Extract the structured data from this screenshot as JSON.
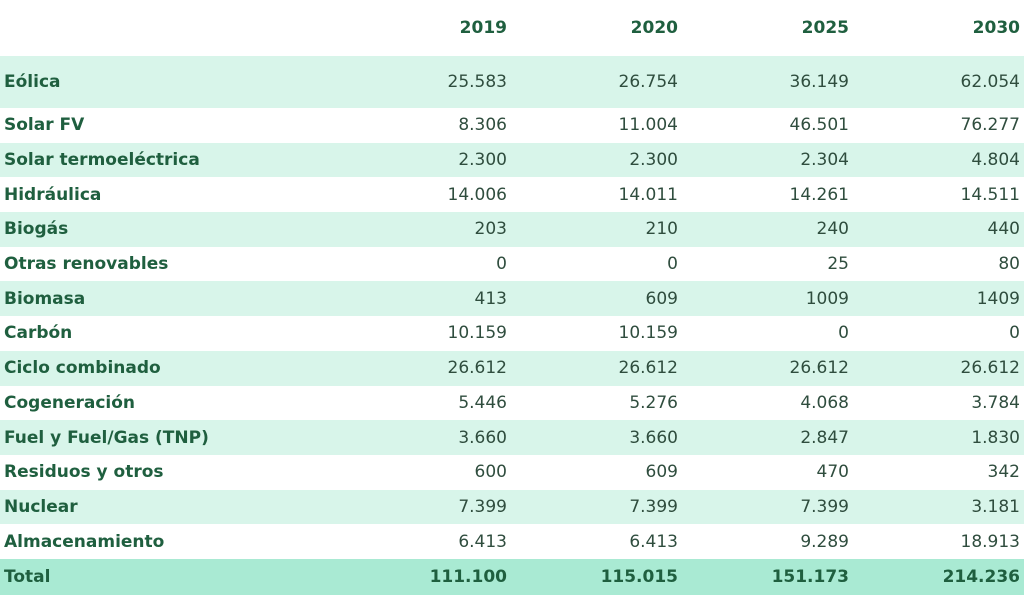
{
  "table": {
    "headers": [
      "",
      "2019",
      "2020",
      "2025",
      "2030"
    ],
    "rows": [
      {
        "label": "Eólica",
        "values": [
          "25.583",
          "26.754",
          "36.149",
          "62.054"
        ]
      },
      {
        "label": "Solar FV",
        "values": [
          "8.306",
          "11.004",
          "46.501",
          "76.277"
        ]
      },
      {
        "label": "Solar termoeléctrica",
        "values": [
          "2.300",
          "2.300",
          "2.304",
          "4.804"
        ]
      },
      {
        "label": "Hidráulica",
        "values": [
          "14.006",
          "14.011",
          "14.261",
          "14.511"
        ]
      },
      {
        "label": "Biogás",
        "values": [
          "203",
          "210",
          "240",
          "440"
        ]
      },
      {
        "label": "Otras renovables",
        "values": [
          "0",
          "0",
          "25",
          "80"
        ]
      },
      {
        "label": "Biomasa",
        "values": [
          "413",
          "609",
          "1009",
          "1409"
        ]
      },
      {
        "label": "Carbón",
        "values": [
          "10.159",
          "10.159",
          "0",
          "0"
        ]
      },
      {
        "label": "Ciclo combinado",
        "values": [
          "26.612",
          "26.612",
          "26.612",
          "26.612"
        ]
      },
      {
        "label": "Cogeneración",
        "values": [
          "5.446",
          "5.276",
          "4.068",
          "3.784"
        ]
      },
      {
        "label": "Fuel y Fuel/Gas (TNP)",
        "values": [
          "3.660",
          "3.660",
          "2.847",
          "1.830"
        ]
      },
      {
        "label": "Residuos y otros",
        "values": [
          "600",
          "609",
          "470",
          "342"
        ]
      },
      {
        "label": "Nuclear",
        "values": [
          "7.399",
          "7.399",
          "7.399",
          "3.181"
        ]
      },
      {
        "label": "Almacenamiento",
        "values": [
          "6.413",
          "6.413",
          "9.289",
          "18.913"
        ]
      }
    ],
    "total": {
      "label": "Total",
      "values": [
        "111.100",
        "115.015",
        "151.173",
        "214.236"
      ]
    }
  },
  "colors": {
    "band": "#d8f5ea",
    "total_band": "#a9ead3",
    "label_text": "#1f5f3f"
  }
}
